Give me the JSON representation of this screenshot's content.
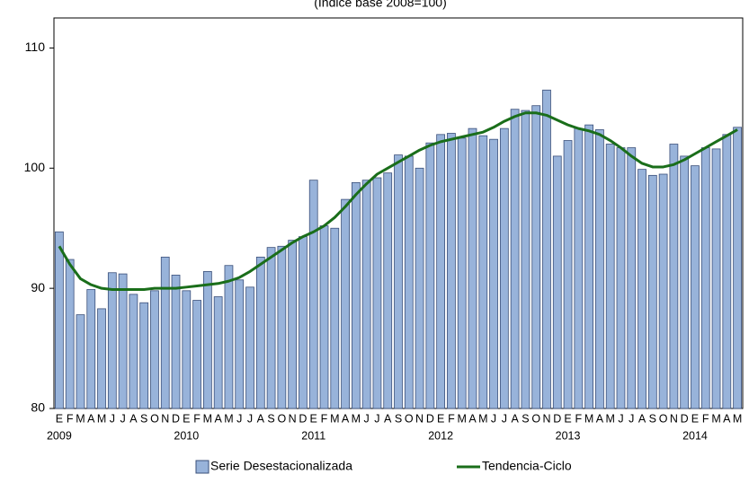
{
  "chart_data": {
    "type": "bar-line",
    "subtitle": "(Índice base 2008=100)",
    "categories": [
      "E",
      "F",
      "M",
      "A",
      "M",
      "J",
      "J",
      "A",
      "S",
      "O",
      "N",
      "D",
      "E",
      "F",
      "M",
      "A",
      "M",
      "J",
      "J",
      "A",
      "S",
      "O",
      "N",
      "D",
      "E",
      "F",
      "M",
      "A",
      "M",
      "J",
      "J",
      "A",
      "S",
      "O",
      "N",
      "D",
      "E",
      "F",
      "M",
      "A",
      "M",
      "J",
      "J",
      "A",
      "S",
      "O",
      "N",
      "D",
      "E",
      "F",
      "M",
      "A",
      "M",
      "J",
      "J",
      "A",
      "S",
      "O",
      "N",
      "D",
      "E",
      "F",
      "M",
      "A",
      "M"
    ],
    "years": [
      "2009",
      "2010",
      "2011",
      "2012",
      "2013",
      "2014"
    ],
    "series": [
      {
        "name": "Serie Desestacionalizada",
        "kind": "bar",
        "color": "#98b3da",
        "values": [
          94.7,
          92.4,
          87.8,
          89.9,
          88.3,
          91.3,
          91.2,
          89.5,
          88.8,
          89.8,
          92.6,
          91.1,
          89.8,
          89.0,
          91.4,
          89.3,
          91.9,
          90.7,
          90.1,
          92.6,
          93.4,
          93.5,
          94.0,
          94.3,
          99.0,
          95.2,
          95.0,
          97.4,
          98.8,
          99.0,
          99.2,
          99.6,
          101.1,
          101.0,
          100.0,
          102.1,
          102.8,
          102.9,
          102.5,
          103.3,
          102.7,
          102.4,
          103.3,
          104.9,
          104.8,
          105.2,
          106.5,
          101.0,
          102.3,
          103.3,
          103.6,
          103.2,
          102.0,
          101.7,
          101.7,
          99.9,
          99.4,
          99.5,
          102.0,
          101.0,
          100.2,
          101.7,
          101.6,
          102.8,
          103.4
        ]
      },
      {
        "name": "Tendencia-Ciclo",
        "kind": "line",
        "color": "#1a6e1a",
        "values": [
          93.5,
          92.0,
          90.8,
          90.3,
          90.0,
          89.9,
          89.9,
          89.9,
          89.9,
          90.0,
          90.0,
          90.0,
          90.1,
          90.2,
          90.3,
          90.4,
          90.6,
          90.9,
          91.4,
          92.0,
          92.6,
          93.2,
          93.8,
          94.3,
          94.7,
          95.2,
          95.9,
          96.8,
          97.8,
          98.7,
          99.5,
          100.0,
          100.5,
          101.0,
          101.5,
          101.9,
          102.2,
          102.4,
          102.6,
          102.8,
          103.0,
          103.4,
          103.9,
          104.3,
          104.6,
          104.6,
          104.4,
          104.0,
          103.6,
          103.3,
          103.1,
          102.8,
          102.3,
          101.7,
          101.0,
          100.4,
          100.1,
          100.1,
          100.3,
          100.7,
          101.2,
          101.7,
          102.2,
          102.7,
          103.2
        ]
      }
    ],
    "ylim": [
      80,
      112.5
    ],
    "yticks": [
      80,
      90,
      100,
      110
    ],
    "grid": false
  }
}
